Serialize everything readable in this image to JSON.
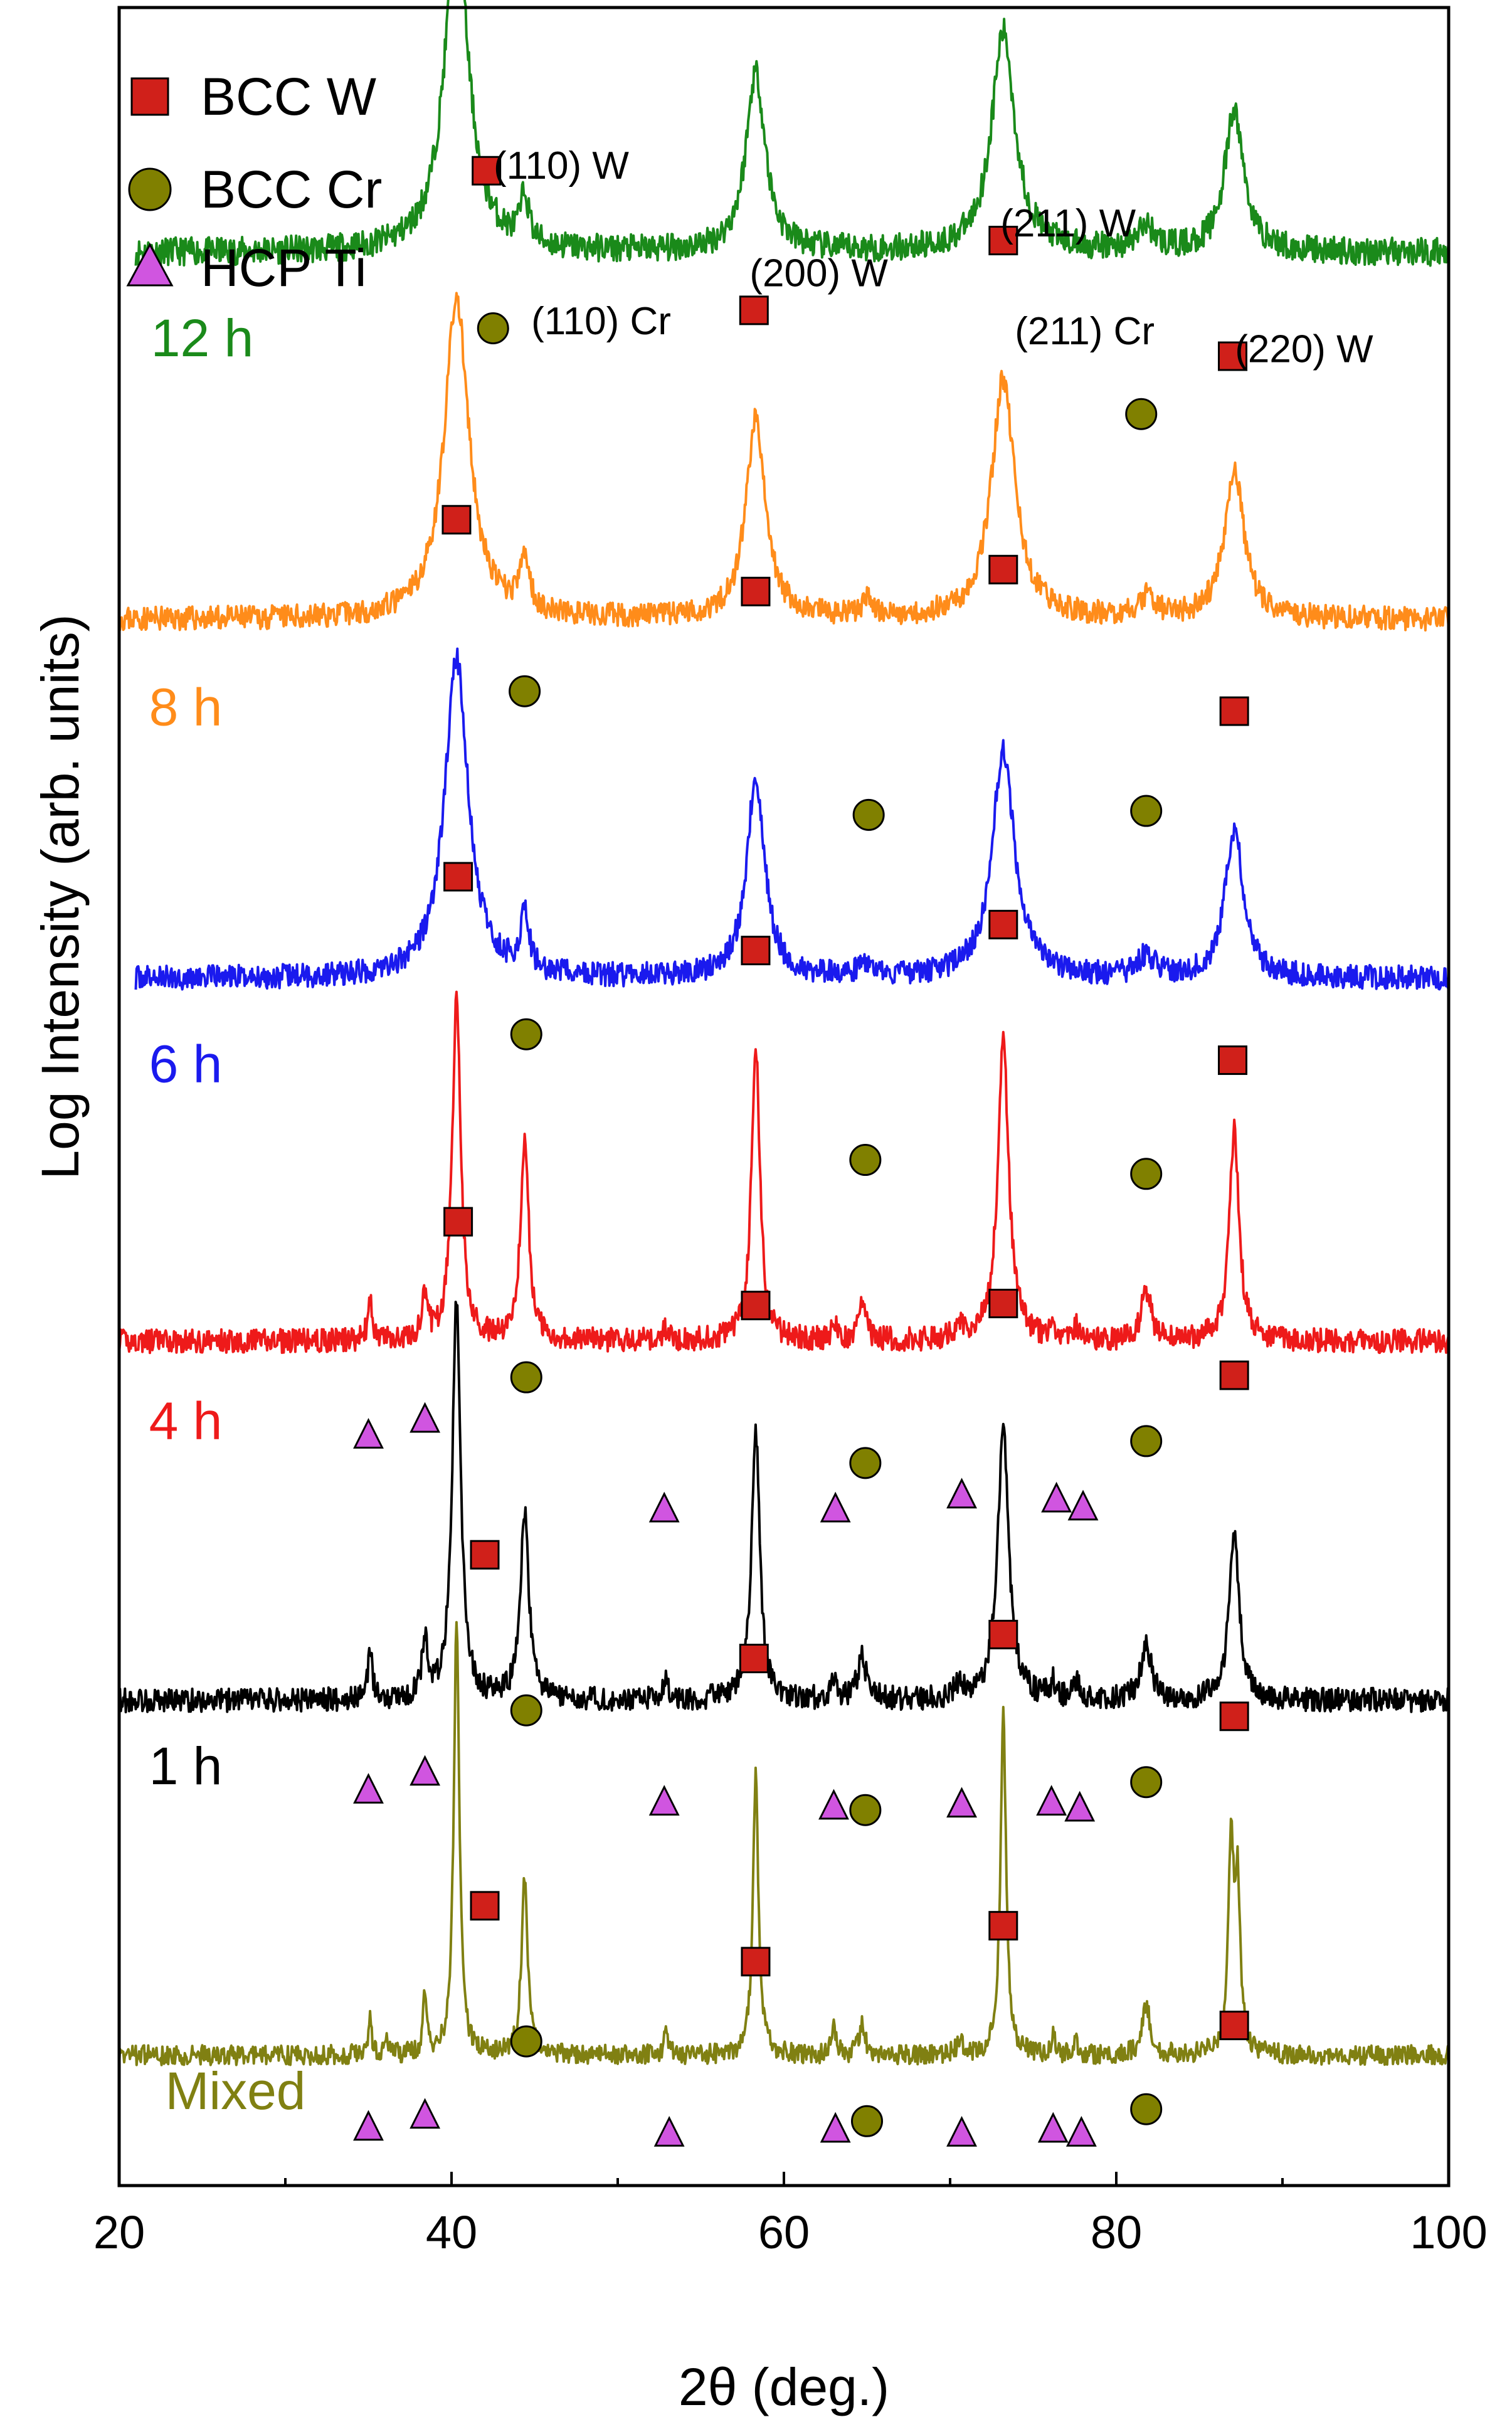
{
  "chart_data": {
    "type": "line",
    "title": "",
    "xlabel": "2θ (deg.)",
    "ylabel": "Log Intensity (arb. units)",
    "xlim": [
      20,
      100
    ],
    "xticks": [
      20,
      40,
      60,
      80,
      100
    ],
    "tick_labels": [
      "20",
      "40",
      "60",
      "80",
      "100"
    ],
    "y_offset_scale": 100,
    "legend": [
      {
        "name": "BCC W",
        "marker": "square",
        "color": "#d0201a"
      },
      {
        "name": "BCC Cr",
        "marker": "circle",
        "color": "#808000"
      },
      {
        "name": "HCP Ti",
        "marker": "triangle",
        "color": "#d055e0"
      }
    ],
    "series": [
      {
        "name": "12 h",
        "color": "#1a8a1a",
        "x_start": 21,
        "baseline": 95.2,
        "noise": 0.7,
        "seed": 11,
        "peaks": [
          [
            40.3,
            16,
            0.9
          ],
          [
            44.4,
            2.4,
            0.3
          ],
          [
            58.3,
            9,
            0.7
          ],
          [
            73.2,
            11,
            0.85
          ],
          [
            81.8,
            1.2,
            0.6
          ],
          [
            87.1,
            7,
            0.7
          ]
        ]
      },
      {
        "name": "8 h",
        "color": "#ff8c1a",
        "x_start": 20,
        "baseline": 76.8,
        "noise": 0.6,
        "seed": 23,
        "peaks": [
          [
            40.3,
            16,
            0.9
          ],
          [
            44.4,
            2.6,
            0.35
          ],
          [
            58.3,
            10,
            0.7
          ],
          [
            65.0,
            0.8,
            0.4
          ],
          [
            73.2,
            12,
            0.85
          ],
          [
            81.8,
            1.0,
            0.6
          ],
          [
            87.1,
            7.5,
            0.7
          ]
        ]
      },
      {
        "name": "6 h",
        "color": "#1a1aee",
        "x_start": 21,
        "baseline": 58.8,
        "noise": 0.6,
        "seed": 37,
        "peaks": [
          [
            40.3,
            16,
            0.85
          ],
          [
            44.4,
            3,
            0.3
          ],
          [
            58.3,
            10,
            0.65
          ],
          [
            64.8,
            0.8,
            0.3
          ],
          [
            73.2,
            11.5,
            0.8
          ],
          [
            81.8,
            1.0,
            0.6
          ],
          [
            87.1,
            7.5,
            0.65
          ]
        ]
      },
      {
        "name": "4 h",
        "color": "#ee1a1a",
        "x_start": 20,
        "baseline": 40.6,
        "noise": 0.6,
        "seed": 41,
        "peaks": [
          [
            35.1,
            1.8,
            0.18
          ],
          [
            38.4,
            2.2,
            0.18
          ],
          [
            40.3,
            17.5,
            0.3
          ],
          [
            44.4,
            10,
            0.3
          ],
          [
            52.9,
            0.6,
            0.2
          ],
          [
            58.3,
            15,
            0.3
          ],
          [
            63.0,
            0.8,
            0.2
          ],
          [
            64.7,
            2,
            0.25
          ],
          [
            70.6,
            0.8,
            0.3
          ],
          [
            73.2,
            15,
            0.4
          ],
          [
            76.2,
            0.6,
            0.2
          ],
          [
            77.6,
            0.6,
            0.2
          ],
          [
            81.8,
            2.5,
            0.35
          ],
          [
            87.1,
            10.5,
            0.35
          ]
        ]
      },
      {
        "name": "1 h",
        "color": "#000000",
        "x_start": 20,
        "baseline": 22.6,
        "noise": 0.6,
        "seed": 53,
        "peaks": [
          [
            35.1,
            2.2,
            0.18
          ],
          [
            38.4,
            3,
            0.2
          ],
          [
            40.3,
            20,
            0.3
          ],
          [
            44.4,
            9.5,
            0.3
          ],
          [
            52.9,
            1.1,
            0.2
          ],
          [
            58.3,
            13.5,
            0.3
          ],
          [
            63.0,
            0.9,
            0.2
          ],
          [
            64.7,
            2.2,
            0.3
          ],
          [
            70.6,
            0.8,
            0.3
          ],
          [
            73.2,
            13.5,
            0.4
          ],
          [
            76.2,
            0.8,
            0.2
          ],
          [
            77.6,
            0.9,
            0.2
          ],
          [
            81.8,
            2.9,
            0.35
          ],
          [
            87.1,
            8.7,
            0.35
          ]
        ]
      },
      {
        "name": "Mixed",
        "color": "#808012",
        "x_start": 20,
        "baseline": 4.8,
        "noise": 0.5,
        "seed": 67,
        "peaks": [
          [
            35.1,
            1.8,
            0.12
          ],
          [
            36.1,
            1.0,
            0.12
          ],
          [
            38.4,
            2.8,
            0.15
          ],
          [
            40.3,
            21.5,
            0.2
          ],
          [
            44.4,
            9.0,
            0.22
          ],
          [
            52.9,
            1.3,
            0.15
          ],
          [
            58.3,
            14,
            0.2
          ],
          [
            63.0,
            1.6,
            0.15
          ],
          [
            64.7,
            1.6,
            0.2
          ],
          [
            70.6,
            0.9,
            0.2
          ],
          [
            73.2,
            17,
            0.2
          ],
          [
            76.2,
            0.9,
            0.15
          ],
          [
            77.6,
            0.7,
            0.15
          ],
          [
            81.8,
            2.5,
            0.3
          ],
          [
            86.9,
            10,
            0.2
          ],
          [
            87.3,
            8,
            0.2
          ]
        ]
      }
    ],
    "markers": [
      {
        "type": "square",
        "x": 42.1,
        "y": 99.3
      },
      {
        "type": "circle",
        "x": 42.5,
        "y": 91.4
      },
      {
        "type": "square",
        "x": 58.2,
        "y": 92.3
      },
      {
        "type": "square",
        "x": 73.2,
        "y": 95.8
      },
      {
        "type": "circle",
        "x": 81.5,
        "y": 87.1
      },
      {
        "type": "square",
        "x": 87.0,
        "y": 90.0
      },
      {
        "type": "square",
        "x": 40.3,
        "y": 81.8
      },
      {
        "type": "circle",
        "x": 44.4,
        "y": 73.2
      },
      {
        "type": "square",
        "x": 58.3,
        "y": 78.2
      },
      {
        "type": "circle",
        "x": 65.1,
        "y": 67.0
      },
      {
        "type": "square",
        "x": 73.2,
        "y": 79.3
      },
      {
        "type": "circle",
        "x": 81.8,
        "y": 67.2
      },
      {
        "type": "square",
        "x": 87.1,
        "y": 72.2
      },
      {
        "type": "square",
        "x": 40.4,
        "y": 63.9
      },
      {
        "type": "circle",
        "x": 44.5,
        "y": 56.0
      },
      {
        "type": "square",
        "x": 58.3,
        "y": 60.2
      },
      {
        "type": "circle",
        "x": 64.9,
        "y": 49.7
      },
      {
        "type": "square",
        "x": 73.2,
        "y": 61.5
      },
      {
        "type": "circle",
        "x": 81.8,
        "y": 49.0
      },
      {
        "type": "square",
        "x": 87.0,
        "y": 54.7
      },
      {
        "type": "square",
        "x": 40.4,
        "y": 46.6
      },
      {
        "type": "circle",
        "x": 44.5,
        "y": 38.8
      },
      {
        "type": "square",
        "x": 58.3,
        "y": 42.4
      },
      {
        "type": "circle",
        "x": 64.9,
        "y": 34.5
      },
      {
        "type": "square",
        "x": 73.2,
        "y": 42.5
      },
      {
        "type": "circle",
        "x": 81.8,
        "y": 35.6
      },
      {
        "type": "square",
        "x": 87.1,
        "y": 38.9
      },
      {
        "type": "triangle",
        "x": 35.0,
        "y": 35.9
      },
      {
        "type": "triangle",
        "x": 38.4,
        "y": 36.7
      },
      {
        "type": "triangle",
        "x": 52.8,
        "y": 32.2
      },
      {
        "type": "triangle",
        "x": 63.1,
        "y": 32.2
      },
      {
        "type": "triangle",
        "x": 70.7,
        "y": 32.9
      },
      {
        "type": "triangle",
        "x": 76.4,
        "y": 32.7
      },
      {
        "type": "triangle",
        "x": 78.0,
        "y": 32.3
      },
      {
        "type": "square",
        "x": 42.0,
        "y": 29.9
      },
      {
        "type": "circle",
        "x": 44.5,
        "y": 22.1
      },
      {
        "type": "square",
        "x": 58.2,
        "y": 24.7
      },
      {
        "type": "circle",
        "x": 64.9,
        "y": 17.1
      },
      {
        "type": "square",
        "x": 73.2,
        "y": 25.9
      },
      {
        "type": "circle",
        "x": 81.8,
        "y": 18.5
      },
      {
        "type": "square",
        "x": 87.1,
        "y": 21.8
      },
      {
        "type": "triangle",
        "x": 35.0,
        "y": 18.1
      },
      {
        "type": "triangle",
        "x": 38.4,
        "y": 19.0
      },
      {
        "type": "triangle",
        "x": 52.8,
        "y": 17.5
      },
      {
        "type": "triangle",
        "x": 63.0,
        "y": 17.3
      },
      {
        "type": "triangle",
        "x": 70.7,
        "y": 17.4
      },
      {
        "type": "triangle",
        "x": 76.1,
        "y": 17.5
      },
      {
        "type": "triangle",
        "x": 77.8,
        "y": 17.2
      },
      {
        "type": "square",
        "x": 42.0,
        "y": 12.3
      },
      {
        "type": "circle",
        "x": 44.5,
        "y": 5.5
      },
      {
        "type": "square",
        "x": 58.3,
        "y": 9.5
      },
      {
        "type": "circle",
        "x": 65.0,
        "y": 1.5
      },
      {
        "type": "square",
        "x": 73.2,
        "y": 11.3
      },
      {
        "type": "circle",
        "x": 81.8,
        "y": 2.1
      },
      {
        "type": "square",
        "x": 87.1,
        "y": 6.3
      },
      {
        "type": "triangle",
        "x": 35.0,
        "y": 1.2
      },
      {
        "type": "triangle",
        "x": 38.4,
        "y": 1.8
      },
      {
        "type": "triangle",
        "x": 53.1,
        "y": 0.9
      },
      {
        "type": "triangle",
        "x": 63.1,
        "y": 1.1
      },
      {
        "type": "triangle",
        "x": 70.7,
        "y": 0.9
      },
      {
        "type": "triangle",
        "x": 76.2,
        "y": 1.1
      },
      {
        "type": "triangle",
        "x": 77.9,
        "y": 0.9
      }
    ],
    "annotations": [
      {
        "text": "(110) W",
        "x": 46.6,
        "y": 98.9
      },
      {
        "text": "(110) Cr",
        "x": 49.0,
        "y": 91.1
      },
      {
        "text": "(200) W",
        "x": 62.1,
        "y": 93.5
      },
      {
        "text": "(211) W",
        "x": 77.1,
        "y": 96.0
      },
      {
        "text": "(211) Cr",
        "x": 78.1,
        "y": 90.6
      },
      {
        "text": "(220) W",
        "x": 91.3,
        "y": 89.7
      }
    ],
    "sample_labels": [
      {
        "text": "12 h",
        "color": "#1a8a1a",
        "x": 25.0,
        "y": 90.0
      },
      {
        "text": "8 h",
        "color": "#ff8c1a",
        "x": 24.0,
        "y": 71.5
      },
      {
        "text": "6 h",
        "color": "#1a1aee",
        "x": 24.0,
        "y": 53.6
      },
      {
        "text": "4 h",
        "color": "#ee1a1a",
        "x": 24.0,
        "y": 35.7
      },
      {
        "text": "1 h",
        "color": "#000000",
        "x": 24.0,
        "y": 18.4
      },
      {
        "text": "Mixed",
        "color": "#808012",
        "x": 27.0,
        "y": 2.1
      }
    ]
  }
}
